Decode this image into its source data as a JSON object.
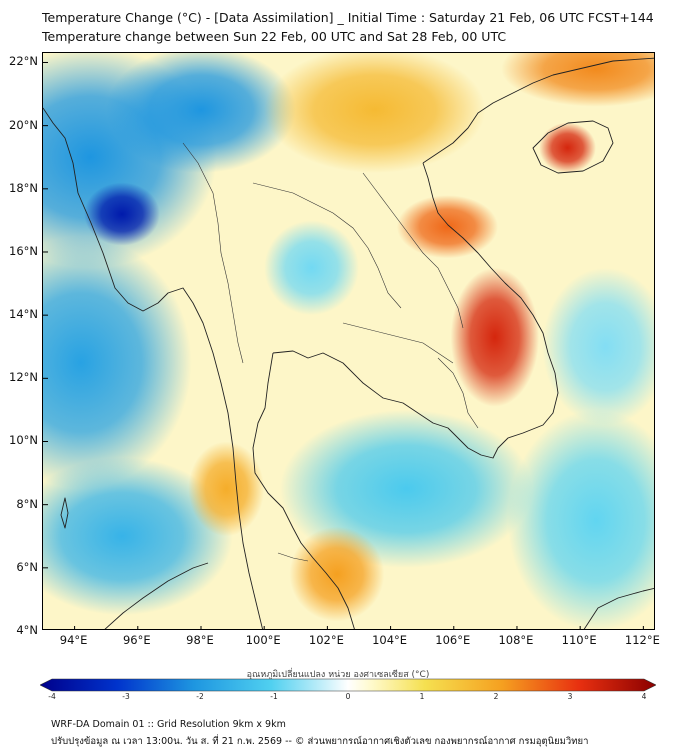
{
  "header": {
    "title_line1": "Temperature Change (°C) - [Data Assimilation] _ Initial Time : Saturday 21 Feb, 06 UTC FCST+144",
    "title_line2": "Temperature change between Sun 22 Feb, 00 UTC and Sat 28 Feb, 00 UTC"
  },
  "map": {
    "lat_range": [
      4,
      22.3
    ],
    "lon_range": [
      93,
      112.4
    ],
    "lat_labels": [
      {
        "value": 22,
        "text": "22°N"
      },
      {
        "value": 20,
        "text": "20°N"
      },
      {
        "value": 18,
        "text": "18°N"
      },
      {
        "value": 16,
        "text": "16°N"
      },
      {
        "value": 14,
        "text": "14°N"
      },
      {
        "value": 12,
        "text": "12°N"
      },
      {
        "value": 10,
        "text": "10°N"
      },
      {
        "value": 8,
        "text": "8°N"
      },
      {
        "value": 6,
        "text": "6°N"
      },
      {
        "value": 4,
        "text": "4°N"
      }
    ],
    "lon_labels": [
      {
        "value": 94,
        "text": "94°E"
      },
      {
        "value": 96,
        "text": "96°E"
      },
      {
        "value": 98,
        "text": "98°E"
      },
      {
        "value": 100,
        "text": "100°E"
      },
      {
        "value": 102,
        "text": "102°E"
      },
      {
        "value": 104,
        "text": "104°E"
      },
      {
        "value": 106,
        "text": "106°E"
      },
      {
        "value": 108,
        "text": "108°E"
      },
      {
        "value": 110,
        "text": "110°E"
      },
      {
        "value": 112,
        "text": "112°E"
      }
    ],
    "background_color": "#fdf6c8",
    "field_blobs": [
      {
        "lon": 94.5,
        "lat": 19.0,
        "spread_lon": 4.0,
        "spread_lat": 3.5,
        "value": -2.0
      },
      {
        "lon": 98.0,
        "lat": 20.5,
        "spread_lon": 3.0,
        "spread_lat": 2.0,
        "value": -2.0
      },
      {
        "lon": 95.5,
        "lat": 17.2,
        "spread_lon": 1.2,
        "spread_lat": 1.0,
        "value": -3.5
      },
      {
        "lon": 94.2,
        "lat": 12.5,
        "spread_lon": 3.5,
        "spread_lat": 4.0,
        "value": -1.8
      },
      {
        "lon": 95.5,
        "lat": 7.0,
        "spread_lon": 3.5,
        "spread_lat": 2.5,
        "value": -1.5
      },
      {
        "lon": 101.5,
        "lat": 15.5,
        "spread_lon": 1.5,
        "spread_lat": 1.5,
        "value": -0.8
      },
      {
        "lon": 104.5,
        "lat": 8.5,
        "spread_lon": 4.0,
        "spread_lat": 2.5,
        "value": -1.1
      },
      {
        "lon": 110.5,
        "lat": 7.5,
        "spread_lon": 2.8,
        "spread_lat": 3.5,
        "value": -0.9
      },
      {
        "lon": 110.8,
        "lat": 13.0,
        "spread_lon": 2.0,
        "spread_lat": 2.5,
        "value": -0.7
      },
      {
        "lon": 103.5,
        "lat": 20.5,
        "spread_lon": 3.5,
        "spread_lat": 2.0,
        "value": 1.6
      },
      {
        "lon": 110.5,
        "lat": 21.8,
        "spread_lon": 3.0,
        "spread_lat": 1.2,
        "value": 2.2
      },
      {
        "lon": 109.6,
        "lat": 19.3,
        "spread_lon": 0.9,
        "spread_lat": 0.8,
        "value": 3.2
      },
      {
        "lon": 105.8,
        "lat": 16.8,
        "spread_lon": 1.6,
        "spread_lat": 1.0,
        "value": 2.5
      },
      {
        "lon": 107.3,
        "lat": 13.3,
        "spread_lon": 1.4,
        "spread_lat": 2.2,
        "value": 3.2
      },
      {
        "lon": 98.8,
        "lat": 8.5,
        "spread_lon": 1.2,
        "spread_lat": 1.5,
        "value": 1.8
      },
      {
        "lon": 102.3,
        "lat": 5.8,
        "spread_lon": 1.5,
        "spread_lat": 1.5,
        "value": 2.0
      }
    ]
  },
  "colorbar": {
    "title": "อุณหภูมิเปลี่ยนแปลง หน่วย องศาเซลเซียส (°C)",
    "min": -4,
    "max": 4,
    "tick_labels": [
      {
        "value": -4,
        "text": "-4"
      },
      {
        "value": -3,
        "text": "-3"
      },
      {
        "value": -2,
        "text": "-2"
      },
      {
        "value": -1,
        "text": "-1"
      },
      {
        "value": 0,
        "text": "0"
      },
      {
        "value": 1,
        "text": "1"
      },
      {
        "value": 2,
        "text": "2"
      },
      {
        "value": 3,
        "text": "3"
      },
      {
        "value": 4,
        "text": "4"
      }
    ],
    "color_stops": [
      {
        "value": -4.0,
        "color": "#00008b"
      },
      {
        "value": -3.0,
        "color": "#0033cc"
      },
      {
        "value": -2.0,
        "color": "#1e96e0"
      },
      {
        "value": -1.0,
        "color": "#50d0f0"
      },
      {
        "value": -0.3,
        "color": "#c8f0fa"
      },
      {
        "value": 0.0,
        "color": "#ffffff"
      },
      {
        "value": 0.3,
        "color": "#fffacd"
      },
      {
        "value": 1.0,
        "color": "#f5e050"
      },
      {
        "value": 2.0,
        "color": "#f5a020"
      },
      {
        "value": 3.0,
        "color": "#e83010"
      },
      {
        "value": 4.0,
        "color": "#8b0000"
      }
    ]
  },
  "footer": {
    "line1": "WRF-DA Domain 01 :: Grid Resolution 9km x 9km",
    "line2": "ปรับปรุงข้อมูล ณ เวลา 13:00น. วัน ส. ที่ 21 ก.พ. 2569 -- © ส่วนพยากรณ์อากาศเชิงตัวเลข กองพยากรณ์อากาศ กรมอุตุนิยมวิทยา"
  }
}
